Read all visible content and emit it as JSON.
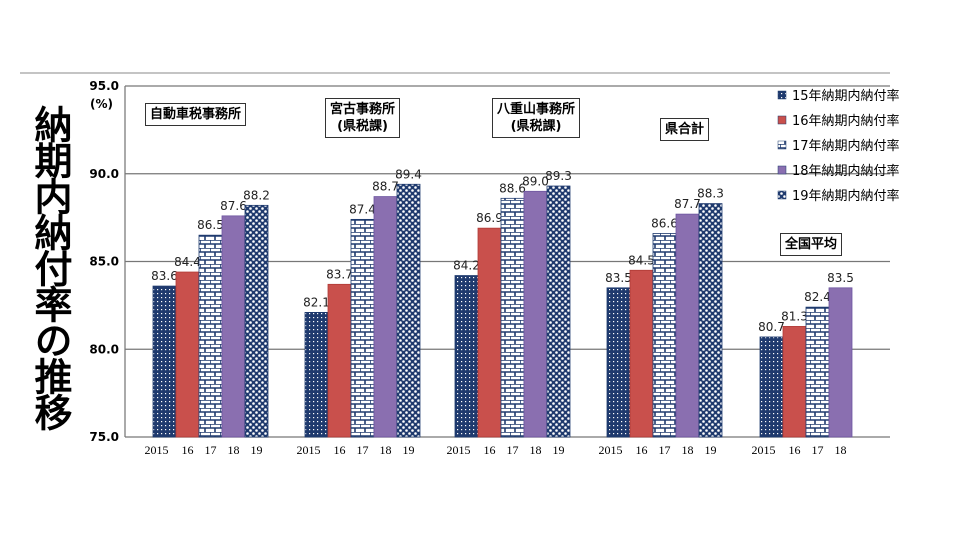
{
  "page_title": "納期内納付率の推移",
  "chart_data": {
    "type": "bar",
    "ylabel": "(%)",
    "ylim": [
      75,
      95
    ],
    "yticks": [
      "75.0",
      "80.0",
      "85.0",
      "90.0",
      "95.0"
    ],
    "grid": true,
    "legend_position": "top-right",
    "series_names": [
      "15年納期内納付率",
      "16年納期内納付率",
      "17年納期内納付率",
      "18年納期内納付率",
      "19年納期内納付率"
    ],
    "colors": [
      "#1f3a6e",
      "#c9504c",
      "#1f3a6e",
      "#8a6fb0",
      "#1f3a6e"
    ],
    "groups": [
      {
        "name": "自動車税事務所",
        "x_labels": [
          "2015",
          "16",
          "17",
          "18",
          "19"
        ],
        "values": [
          83.6,
          84.4,
          86.5,
          87.6,
          88.2
        ],
        "labels": [
          "83.6",
          "84.4",
          "86.5",
          "87.6",
          "88.2"
        ]
      },
      {
        "name": "宮古事務所\n(県税課)",
        "x_labels": [
          "2015",
          "16",
          "17",
          "18",
          "19"
        ],
        "values": [
          82.1,
          83.7,
          87.4,
          88.7,
          89.4
        ],
        "labels": [
          "82.1",
          "83.7",
          "87.4",
          "88.7",
          "89.4"
        ]
      },
      {
        "name": "八重山事務所\n(県税課)",
        "x_labels": [
          "2015",
          "16",
          "17",
          "18",
          "19"
        ],
        "values": [
          84.2,
          86.9,
          88.6,
          89.0,
          89.3
        ],
        "labels": [
          "84.2",
          "86.9",
          "88.6",
          "89.0",
          "89.3"
        ]
      },
      {
        "name": "県合計",
        "x_labels": [
          "2015",
          "16",
          "17",
          "18",
          "19"
        ],
        "values": [
          83.5,
          84.5,
          86.6,
          87.7,
          88.3
        ],
        "labels": [
          "83.5",
          "84.5",
          "86.6",
          "87.7",
          "88.3"
        ]
      },
      {
        "name": "全国平均",
        "x_labels": [
          "2015",
          "16",
          "17",
          "18"
        ],
        "values": [
          80.7,
          81.3,
          82.4,
          83.5
        ],
        "labels": [
          "80.7",
          "81.3",
          "82.4",
          "83.5"
        ]
      }
    ]
  }
}
